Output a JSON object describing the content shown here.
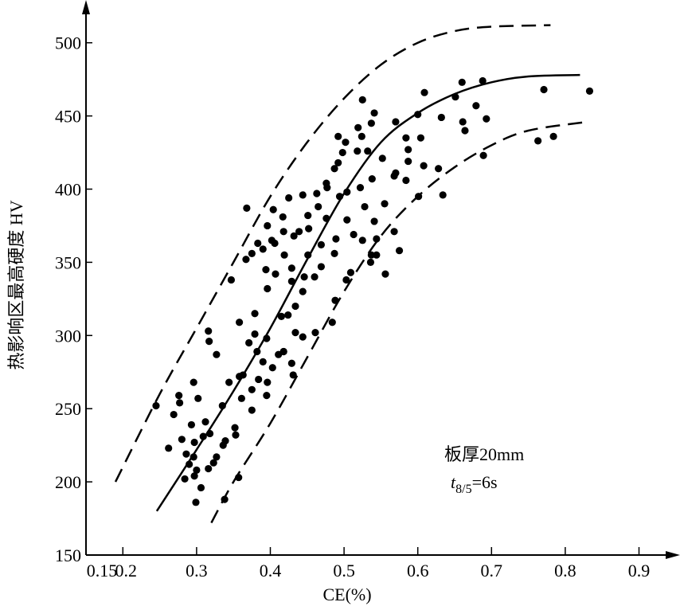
{
  "chart_data": {
    "type": "scatter",
    "title": "",
    "xlabel": "CE(%)",
    "ylabel": "热影响区最高硬度 HV",
    "xlim": [
      0.15,
      0.95
    ],
    "ylim": [
      150,
      520
    ],
    "x_ticks": [
      "0.15",
      "0.2",
      "0.3",
      "0.4",
      "0.5",
      "0.6",
      "0.7",
      "0.8",
      "0.9"
    ],
    "x_tick_values": [
      0.15,
      0.2,
      0.3,
      0.4,
      0.5,
      0.6,
      0.7,
      0.8,
      0.9
    ],
    "y_ticks": [
      "150",
      "200",
      "250",
      "300",
      "350",
      "400",
      "450",
      "500"
    ],
    "y_tick_values": [
      150,
      200,
      250,
      300,
      350,
      400,
      450,
      500
    ],
    "grid": false,
    "annotations": {
      "line1": "板厚20mm",
      "t_symbol": "t",
      "t_subscript": "8/5",
      "t_value": "=6s"
    },
    "mean_curve": [
      [
        0.246,
        180
      ],
      [
        0.3,
        222
      ],
      [
        0.35,
        262
      ],
      [
        0.4,
        305
      ],
      [
        0.45,
        352
      ],
      [
        0.5,
        397
      ],
      [
        0.55,
        432
      ],
      [
        0.6,
        452
      ],
      [
        0.65,
        465
      ],
      [
        0.7,
        473
      ],
      [
        0.75,
        477
      ],
      [
        0.82,
        478
      ]
    ],
    "upper_bound": [
      [
        0.19,
        200
      ],
      [
        0.25,
        260
      ],
      [
        0.3,
        305
      ],
      [
        0.35,
        350
      ],
      [
        0.4,
        395
      ],
      [
        0.45,
        432
      ],
      [
        0.5,
        462
      ],
      [
        0.55,
        485
      ],
      [
        0.6,
        500
      ],
      [
        0.65,
        508
      ],
      [
        0.7,
        511
      ],
      [
        0.78,
        512
      ]
    ],
    "lower_bound": [
      [
        0.32,
        172
      ],
      [
        0.35,
        200
      ],
      [
        0.4,
        240
      ],
      [
        0.45,
        285
      ],
      [
        0.5,
        330
      ],
      [
        0.55,
        368
      ],
      [
        0.6,
        395
      ],
      [
        0.65,
        415
      ],
      [
        0.7,
        430
      ],
      [
        0.75,
        440
      ],
      [
        0.83,
        446
      ]
    ],
    "points": [
      [
        0.245,
        252
      ],
      [
        0.269,
        246
      ],
      [
        0.262,
        223
      ],
      [
        0.276,
        259
      ],
      [
        0.277,
        254
      ],
      [
        0.296,
        268
      ],
      [
        0.28,
        229
      ],
      [
        0.297,
        227
      ],
      [
        0.296,
        217
      ],
      [
        0.297,
        204
      ],
      [
        0.29,
        212
      ],
      [
        0.299,
        186
      ],
      [
        0.284,
        202
      ],
      [
        0.306,
        196
      ],
      [
        0.316,
        209
      ],
      [
        0.323,
        213
      ],
      [
        0.302,
        257
      ],
      [
        0.293,
        239
      ],
      [
        0.312,
        241
      ],
      [
        0.335,
        252
      ],
      [
        0.318,
        233
      ],
      [
        0.336,
        225
      ],
      [
        0.327,
        217
      ],
      [
        0.338,
        188
      ],
      [
        0.357,
        203
      ],
      [
        0.339,
        228
      ],
      [
        0.353,
        232
      ],
      [
        0.363,
        273
      ],
      [
        0.375,
        263
      ],
      [
        0.384,
        270
      ],
      [
        0.358,
        272
      ],
      [
        0.358,
        309
      ],
      [
        0.371,
        295
      ],
      [
        0.379,
        301
      ],
      [
        0.382,
        289
      ],
      [
        0.39,
        282
      ],
      [
        0.395,
        298
      ],
      [
        0.403,
        278
      ],
      [
        0.411,
        287
      ],
      [
        0.415,
        313
      ],
      [
        0.424,
        314
      ],
      [
        0.429,
        337
      ],
      [
        0.379,
        315
      ],
      [
        0.396,
        332
      ],
      [
        0.407,
        342
      ],
      [
        0.429,
        346
      ],
      [
        0.419,
        355
      ],
      [
        0.394,
        345
      ],
      [
        0.383,
        363
      ],
      [
        0.402,
        365
      ],
      [
        0.396,
        375
      ],
      [
        0.404,
        386
      ],
      [
        0.417,
        381
      ],
      [
        0.425,
        394
      ],
      [
        0.444,
        396
      ],
      [
        0.432,
        368
      ],
      [
        0.452,
        373
      ],
      [
        0.451,
        355
      ],
      [
        0.446,
        340
      ],
      [
        0.46,
        340
      ],
      [
        0.469,
        362
      ],
      [
        0.469,
        347
      ],
      [
        0.434,
        320
      ],
      [
        0.444,
        330
      ],
      [
        0.487,
        356
      ],
      [
        0.476,
        380
      ],
      [
        0.451,
        382
      ],
      [
        0.465,
        388
      ],
      [
        0.494,
        395
      ],
      [
        0.489,
        366
      ],
      [
        0.504,
        379
      ],
      [
        0.513,
        369
      ],
      [
        0.487,
        414
      ],
      [
        0.498,
        425
      ],
      [
        0.518,
        426
      ],
      [
        0.528,
        388
      ],
      [
        0.541,
        378
      ],
      [
        0.525,
        365
      ],
      [
        0.537,
        355
      ],
      [
        0.555,
        390
      ],
      [
        0.568,
        371
      ],
      [
        0.575,
        358
      ],
      [
        0.556,
        342
      ],
      [
        0.536,
        350
      ],
      [
        0.509,
        343
      ],
      [
        0.503,
        338
      ],
      [
        0.488,
        324
      ],
      [
        0.461,
        302
      ],
      [
        0.444,
        299
      ],
      [
        0.429,
        281
      ],
      [
        0.431,
        273
      ],
      [
        0.418,
        289
      ],
      [
        0.396,
        268
      ],
      [
        0.375,
        249
      ],
      [
        0.361,
        257
      ],
      [
        0.327,
        287
      ],
      [
        0.317,
        296
      ],
      [
        0.316,
        303
      ],
      [
        0.368,
        387
      ],
      [
        0.347,
        338
      ],
      [
        0.367,
        352
      ],
      [
        0.375,
        356
      ],
      [
        0.39,
        359
      ],
      [
        0.406,
        363
      ],
      [
        0.418,
        371
      ],
      [
        0.439,
        371
      ],
      [
        0.463,
        397
      ],
      [
        0.477,
        401
      ],
      [
        0.492,
        418
      ],
      [
        0.476,
        404
      ],
      [
        0.434,
        302
      ],
      [
        0.418,
        289
      ],
      [
        0.395,
        259
      ],
      [
        0.352,
        237
      ],
      [
        0.344,
        268
      ],
      [
        0.286,
        219
      ],
      [
        0.3,
        208
      ],
      [
        0.309,
        231
      ],
      [
        0.522,
        401
      ],
      [
        0.504,
        398
      ],
      [
        0.609,
        466
      ],
      [
        0.66,
        473
      ],
      [
        0.688,
        474
      ],
      [
        0.651,
        463
      ],
      [
        0.679,
        457
      ],
      [
        0.693,
        448
      ],
      [
        0.661,
        446
      ],
      [
        0.664,
        440
      ],
      [
        0.632,
        449
      ],
      [
        0.6,
        451
      ],
      [
        0.57,
        446
      ],
      [
        0.771,
        468
      ],
      [
        0.833,
        467
      ],
      [
        0.784,
        436
      ],
      [
        0.763,
        433
      ],
      [
        0.689,
        423
      ],
      [
        0.584,
        435
      ],
      [
        0.604,
        435
      ],
      [
        0.587,
        427
      ],
      [
        0.587,
        419
      ],
      [
        0.608,
        416
      ],
      [
        0.628,
        414
      ],
      [
        0.634,
        396
      ],
      [
        0.601,
        395
      ],
      [
        0.584,
        406
      ],
      [
        0.57,
        411
      ],
      [
        0.541,
        452
      ],
      [
        0.537,
        445
      ],
      [
        0.519,
        442
      ],
      [
        0.524,
        436
      ],
      [
        0.492,
        436
      ],
      [
        0.502,
        432
      ],
      [
        0.532,
        426
      ],
      [
        0.544,
        355
      ],
      [
        0.525,
        461
      ],
      [
        0.484,
        309
      ],
      [
        0.552,
        421
      ],
      [
        0.568,
        409
      ],
      [
        0.538,
        407
      ],
      [
        0.544,
        366
      ]
    ]
  }
}
